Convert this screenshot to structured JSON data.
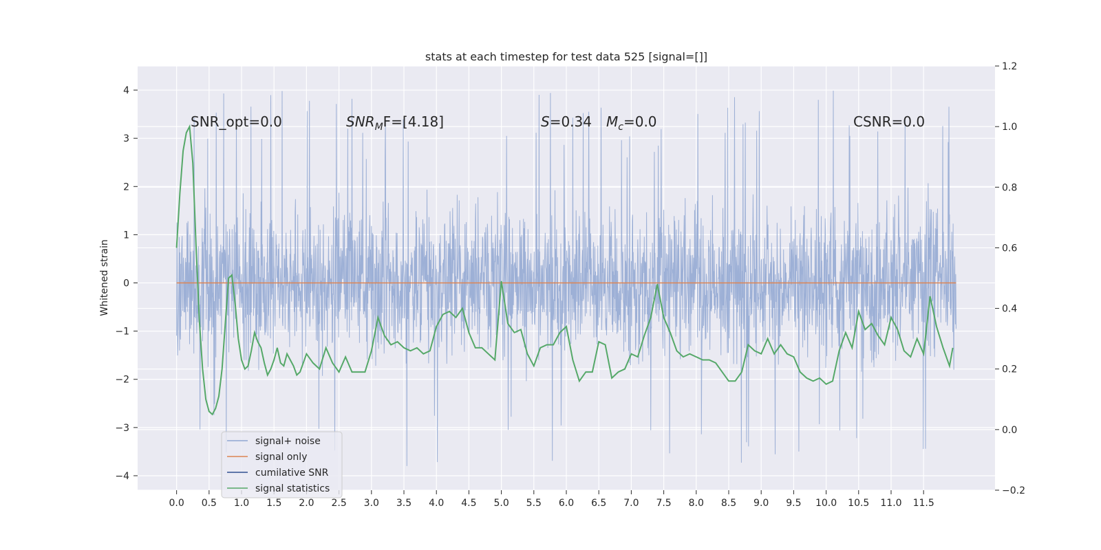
{
  "chart_data": {
    "type": "line",
    "title": "stats at each timestep for test data 525 [signal=[]]",
    "ylabel": "Whitened strain",
    "xlim": [
      -0.6,
      12.6
    ],
    "ylim": [
      -4.3,
      4.5
    ],
    "y2lim": [
      -0.2,
      1.2
    ],
    "grid": true,
    "legend_position": "lower left",
    "x_ticks": [
      "0.0",
      "0.5",
      "1.0",
      "1.5",
      "2.0",
      "2.5",
      "3.0",
      "3.5",
      "4.0",
      "4.5",
      "5.0",
      "5.5",
      "6.0",
      "6.5",
      "7.0",
      "7.5",
      "8.0",
      "8.5",
      "9.0",
      "9.5",
      "10.0",
      "10.5",
      "11.0",
      "11.5"
    ],
    "y_ticks": [
      "4",
      "3",
      "2",
      "1",
      "0",
      "−1",
      "−2",
      "−3",
      "−4"
    ],
    "y2_ticks": [
      "1.2",
      "1.0",
      "0.8",
      "0.6",
      "0.4",
      "0.2",
      "0.0",
      "−0.2"
    ],
    "annotations": {
      "snr_opt": "SNR_opt=0.0",
      "snr_mf_main": "SNR",
      "snr_mf_sub": "M",
      "snr_mf_rest": "F=[4.18]",
      "s_label": "S",
      "s_value": "=0.34",
      "mc_label": "M",
      "mc_sub": "c",
      "mc_value": "=0.0",
      "csnr": "CSNR=0.0"
    },
    "series": [
      {
        "name": "signal+ noise",
        "color": "#8fa6d1",
        "x_range": [
          0.0,
          12.0
        ],
        "typical_range": [
          -2.2,
          2.2
        ],
        "extreme_range": [
          -3.8,
          4.1
        ]
      },
      {
        "name": "signal only",
        "color": "#dd8452",
        "x": [
          0.0,
          12.0
        ],
        "y": [
          0.0,
          0.0
        ]
      },
      {
        "name": "cumilative SNR",
        "color": "#2f4f8f",
        "x": [],
        "y": []
      },
      {
        "name": "signal statistics",
        "color": "#55a868",
        "axis": "right",
        "x": [
          0.0,
          0.05,
          0.1,
          0.15,
          0.2,
          0.25,
          0.3,
          0.35,
          0.4,
          0.45,
          0.5,
          0.55,
          0.6,
          0.65,
          0.7,
          0.75,
          0.8,
          0.85,
          0.9,
          0.95,
          1.0,
          1.05,
          1.1,
          1.15,
          1.2,
          1.25,
          1.3,
          1.35,
          1.4,
          1.45,
          1.5,
          1.55,
          1.6,
          1.65,
          1.7,
          1.75,
          1.8,
          1.85,
          1.9,
          1.95,
          2.0,
          2.1,
          2.2,
          2.3,
          2.4,
          2.5,
          2.6,
          2.7,
          2.8,
          2.9,
          3.0,
          3.1,
          3.2,
          3.3,
          3.4,
          3.5,
          3.6,
          3.7,
          3.8,
          3.9,
          4.0,
          4.1,
          4.2,
          4.3,
          4.4,
          4.5,
          4.6,
          4.7,
          4.8,
          4.9,
          5.0,
          5.1,
          5.2,
          5.3,
          5.4,
          5.5,
          5.6,
          5.7,
          5.8,
          5.9,
          6.0,
          6.1,
          6.2,
          6.3,
          6.4,
          6.5,
          6.6,
          6.7,
          6.8,
          6.9,
          7.0,
          7.1,
          7.2,
          7.3,
          7.4,
          7.5,
          7.6,
          7.7,
          7.8,
          7.9,
          8.0,
          8.1,
          8.2,
          8.3,
          8.4,
          8.5,
          8.6,
          8.7,
          8.8,
          8.9,
          9.0,
          9.1,
          9.2,
          9.3,
          9.4,
          9.5,
          9.6,
          9.7,
          9.8,
          9.9,
          10.0,
          10.1,
          10.2,
          10.3,
          10.4,
          10.5,
          10.6,
          10.7,
          10.8,
          10.9,
          11.0,
          11.1,
          11.2,
          11.3,
          11.4,
          11.5,
          11.6,
          11.7,
          11.8,
          11.9,
          11.95
        ],
        "y": [
          0.6,
          0.78,
          0.92,
          0.98,
          1.0,
          0.88,
          0.6,
          0.36,
          0.2,
          0.1,
          0.06,
          0.05,
          0.07,
          0.11,
          0.2,
          0.35,
          0.5,
          0.51,
          0.42,
          0.3,
          0.23,
          0.2,
          0.21,
          0.26,
          0.32,
          0.29,
          0.27,
          0.22,
          0.18,
          0.2,
          0.23,
          0.27,
          0.22,
          0.21,
          0.25,
          0.23,
          0.21,
          0.18,
          0.19,
          0.22,
          0.25,
          0.22,
          0.2,
          0.27,
          0.22,
          0.19,
          0.24,
          0.19,
          0.19,
          0.19,
          0.26,
          0.37,
          0.31,
          0.28,
          0.29,
          0.27,
          0.26,
          0.27,
          0.25,
          0.26,
          0.34,
          0.38,
          0.39,
          0.37,
          0.4,
          0.32,
          0.27,
          0.27,
          0.25,
          0.23,
          0.49,
          0.35,
          0.32,
          0.33,
          0.25,
          0.21,
          0.27,
          0.28,
          0.28,
          0.32,
          0.34,
          0.23,
          0.16,
          0.19,
          0.19,
          0.29,
          0.28,
          0.17,
          0.19,
          0.2,
          0.25,
          0.24,
          0.31,
          0.37,
          0.48,
          0.37,
          0.32,
          0.26,
          0.24,
          0.25,
          0.24,
          0.23,
          0.23,
          0.22,
          0.19,
          0.16,
          0.16,
          0.19,
          0.28,
          0.26,
          0.25,
          0.3,
          0.25,
          0.28,
          0.25,
          0.24,
          0.19,
          0.17,
          0.16,
          0.17,
          0.15,
          0.16,
          0.26,
          0.32,
          0.27,
          0.39,
          0.33,
          0.35,
          0.31,
          0.28,
          0.37,
          0.33,
          0.26,
          0.24,
          0.3,
          0.25,
          0.44,
          0.34,
          0.27,
          0.21,
          0.27
        ]
      }
    ]
  }
}
